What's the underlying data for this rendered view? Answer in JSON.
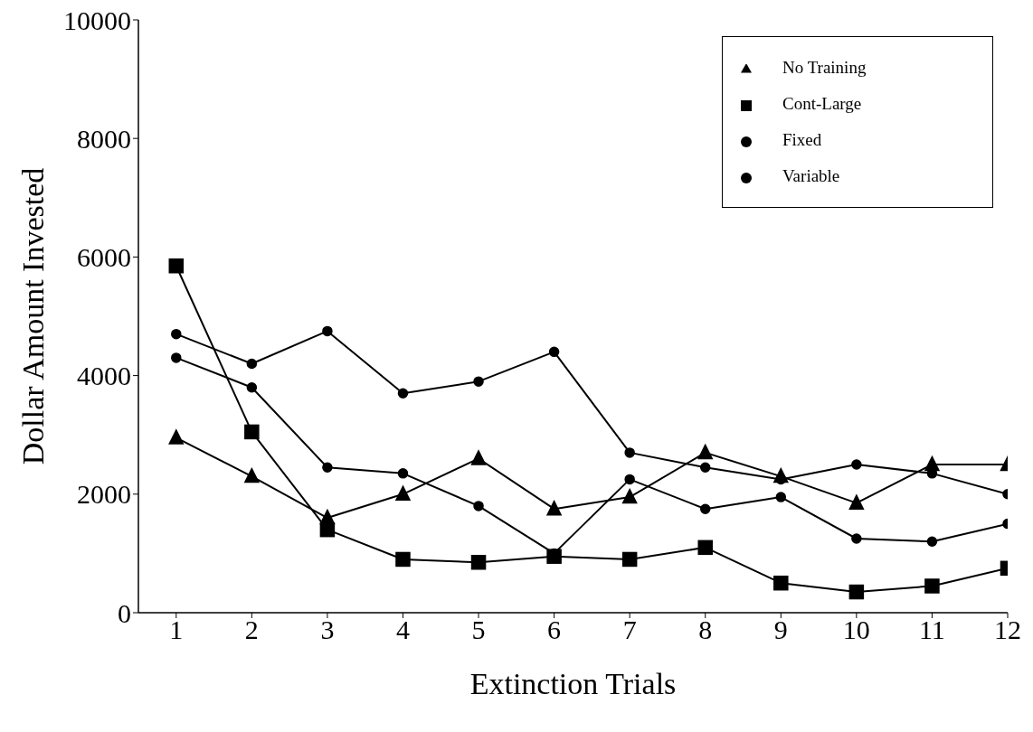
{
  "chart_data": {
    "type": "line",
    "xlabel": "Extinction Trials",
    "ylabel": "Dollar Amount Invested",
    "x": [
      1,
      2,
      3,
      4,
      5,
      6,
      7,
      8,
      9,
      10,
      11,
      12
    ],
    "xlim": [
      0.5,
      12
    ],
    "xticks": [
      1,
      2,
      3,
      4,
      5,
      6,
      7,
      8,
      9,
      10,
      11,
      12
    ],
    "ylim": [
      0,
      10000
    ],
    "yticks": [
      0,
      2000,
      4000,
      6000,
      8000,
      10000
    ],
    "grid": false,
    "legend": "top right",
    "line_style": "solid",
    "series": [
      {
        "name": "No Training",
        "color": "#000000",
        "marker": "triangle",
        "values": [
          2950,
          2300,
          1600,
          2000,
          2600,
          1750,
          1950,
          2700,
          2300,
          1850,
          2500,
          2500
        ]
      },
      {
        "name": "Cont-Large",
        "color": "#000000",
        "marker": "square",
        "values": [
          5850,
          3050,
          1400,
          900,
          850,
          950,
          900,
          1100,
          500,
          350,
          450,
          750
        ]
      },
      {
        "name": "Fixed",
        "color": "#000000",
        "marker": "circle",
        "values": [
          4300,
          3800,
          2450,
          2350,
          1800,
          1000,
          2250,
          1750,
          1950,
          1250,
          1200,
          1500
        ]
      },
      {
        "name": "Variable",
        "color": "#000000",
        "marker": "circle",
        "values": [
          4700,
          4200,
          4750,
          3700,
          3900,
          4400,
          2700,
          2450,
          2250,
          2500,
          2350,
          2000
        ]
      }
    ]
  }
}
